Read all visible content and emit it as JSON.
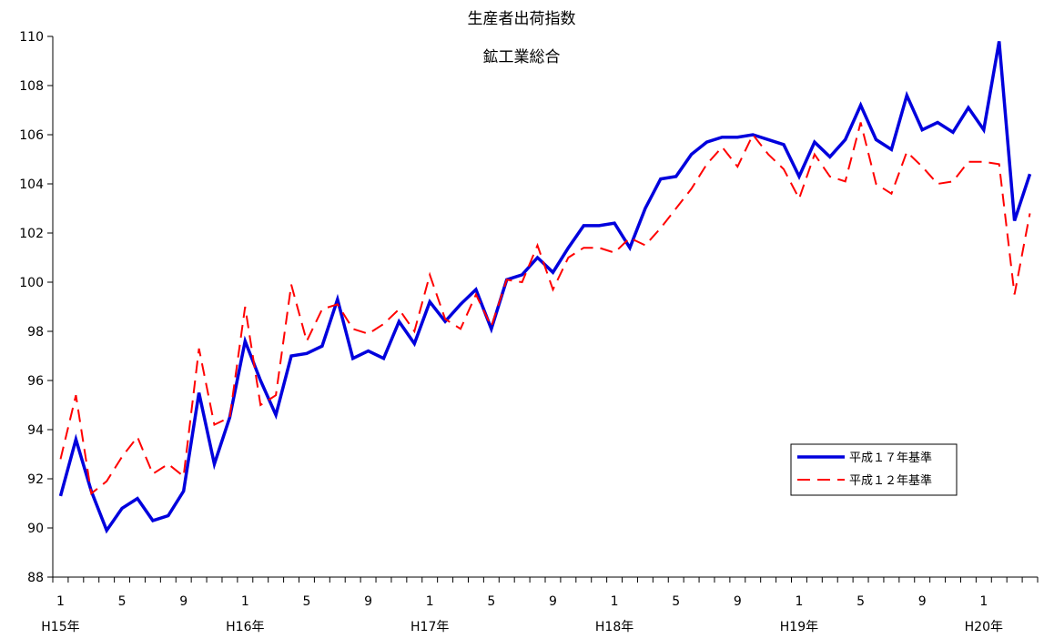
{
  "chart_data": {
    "type": "line",
    "title": "生産者出荷指数",
    "subtitle": "鉱工業総合",
    "xlabel": "",
    "ylabel": "",
    "ylim": [
      88,
      110
    ],
    "yticks": [
      88,
      90,
      92,
      94,
      96,
      98,
      100,
      102,
      104,
      106,
      108,
      110
    ],
    "grid": false,
    "legend_position": "right",
    "x_month_tick_labels": [
      {
        "index": 0,
        "label": "1"
      },
      {
        "index": 4,
        "label": "5"
      },
      {
        "index": 8,
        "label": "9"
      },
      {
        "index": 12,
        "label": "1"
      },
      {
        "index": 16,
        "label": "5"
      },
      {
        "index": 20,
        "label": "9"
      },
      {
        "index": 24,
        "label": "1"
      },
      {
        "index": 28,
        "label": "5"
      },
      {
        "index": 32,
        "label": "9"
      },
      {
        "index": 36,
        "label": "1"
      },
      {
        "index": 40,
        "label": "5"
      },
      {
        "index": 44,
        "label": "9"
      },
      {
        "index": 48,
        "label": "1"
      },
      {
        "index": 52,
        "label": "5"
      },
      {
        "index": 56,
        "label": "9"
      },
      {
        "index": 60,
        "label": "1"
      }
    ],
    "x_year_labels": [
      {
        "index": 0,
        "label": "H15年"
      },
      {
        "index": 12,
        "label": "H16年"
      },
      {
        "index": 24,
        "label": "H17年"
      },
      {
        "index": 36,
        "label": "H18年"
      },
      {
        "index": 48,
        "label": "H19年"
      },
      {
        "index": 60,
        "label": "H20年"
      }
    ],
    "series": [
      {
        "name": "平成１７年基準",
        "color": "#0000dd",
        "style": "solid",
        "values": [
          91.3,
          93.6,
          91.5,
          89.9,
          90.8,
          91.2,
          90.3,
          90.5,
          91.5,
          95.5,
          92.6,
          94.5,
          97.6,
          96.0,
          94.6,
          97.0,
          97.1,
          97.4,
          99.3,
          96.9,
          97.2,
          96.9,
          98.4,
          97.5,
          99.2,
          98.4,
          99.1,
          99.7,
          98.1,
          100.1,
          100.3,
          101.0,
          100.4,
          101.4,
          102.3,
          102.3,
          102.4,
          101.4,
          103.0,
          104.2,
          104.3,
          105.2,
          105.7,
          105.9,
          105.9,
          106.0,
          105.8,
          105.6,
          104.3,
          105.7,
          105.1,
          105.8,
          107.2,
          105.8,
          105.4,
          107.6,
          106.2,
          106.5,
          106.1,
          107.1,
          106.2,
          109.8,
          102.5,
          104.4
        ]
      },
      {
        "name": "平成１２年基準",
        "color": "#ff0000",
        "style": "dashed",
        "values": [
          92.8,
          95.4,
          91.4,
          91.9,
          92.9,
          93.7,
          92.2,
          92.6,
          92.1,
          97.3,
          94.2,
          94.5,
          99.0,
          95.0,
          95.4,
          99.9,
          97.6,
          98.9,
          99.1,
          98.1,
          97.9,
          98.3,
          98.9,
          98.0,
          100.3,
          98.5,
          98.1,
          99.5,
          98.2,
          100.1,
          100.0,
          101.5,
          99.7,
          101.0,
          101.4,
          101.4,
          101.2,
          101.8,
          101.5,
          102.2,
          103.0,
          103.8,
          104.8,
          105.5,
          104.7,
          106.0,
          105.2,
          104.6,
          103.4,
          105.2,
          104.3,
          104.1,
          106.5,
          104.0,
          103.6,
          105.3,
          104.7,
          104.0,
          104.1,
          104.9,
          104.9,
          104.8,
          99.5,
          102.8
        ]
      }
    ]
  }
}
